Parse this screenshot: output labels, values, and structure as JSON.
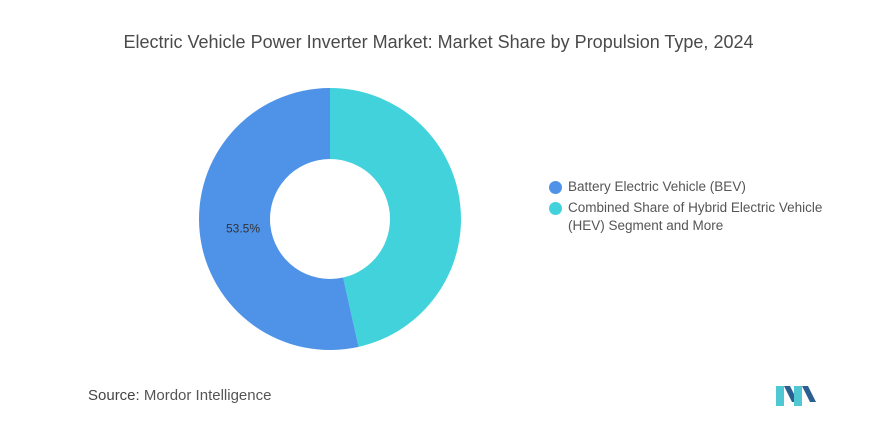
{
  "title": "Electric Vehicle Power Inverter Market: Market Share by Propulsion Type, 2024",
  "source": {
    "label": "Source:",
    "value": "Mordor Intelligence"
  },
  "logo": {
    "icon": "mordor-intelligence-logo"
  },
  "colors": {
    "bev": "#4f93e8",
    "hev": "#41d2dc",
    "logo_dark": "#2b5f8f",
    "logo_light": "#4fc8d4"
  },
  "chart_data": {
    "type": "pie",
    "variant": "donut",
    "title": "Electric Vehicle Power Inverter Market: Market Share by Propulsion Type, 2024",
    "categories": [
      "Battery Electric Vehicle (BEV)",
      "Combined Share of Hybrid Electric Vehicle (HEV) Segment and More"
    ],
    "values": [
      53.5,
      46.5
    ],
    "data_labels": [
      "53.5%",
      ""
    ],
    "legend_position": "right"
  }
}
